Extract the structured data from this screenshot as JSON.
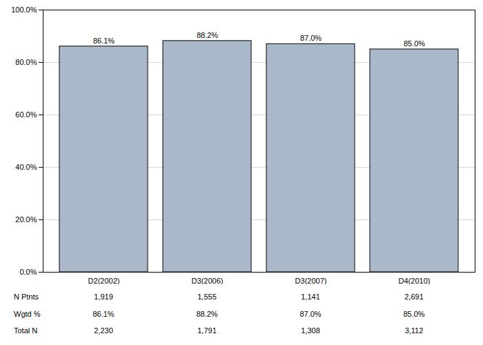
{
  "chart_data": {
    "type": "bar",
    "categories": [
      "D2(2002)",
      "D3(2006)",
      "D3(2007)",
      "D4(2010)"
    ],
    "values": [
      86.1,
      88.2,
      87.0,
      85.0
    ],
    "value_labels": [
      "86.1%",
      "88.2%",
      "87.0%",
      "85.0%"
    ],
    "data_labels": true,
    "color": "#a9b9ca",
    "ylim": [
      0,
      100
    ],
    "yticks": [
      {
        "value": 0,
        "label": "0.0%"
      },
      {
        "value": 20,
        "label": "20.0%"
      },
      {
        "value": 40,
        "label": "40.0%"
      },
      {
        "value": 60,
        "label": "60.0%"
      },
      {
        "value": 80,
        "label": "80.0%"
      },
      {
        "value": 100,
        "label": "100.0%"
      }
    ],
    "grid": true,
    "table_rows": [
      {
        "name": "N Ptnts",
        "values": [
          "1,919",
          "1,555",
          "1,141",
          "2,691"
        ]
      },
      {
        "name": "Wgtd %",
        "values": [
          "86.1%",
          "88.2%",
          "87.0%",
          "85.0%"
        ]
      },
      {
        "name": "Total N",
        "values": [
          "2,230",
          "1,791",
          "1,308",
          "3,112"
        ]
      }
    ]
  }
}
